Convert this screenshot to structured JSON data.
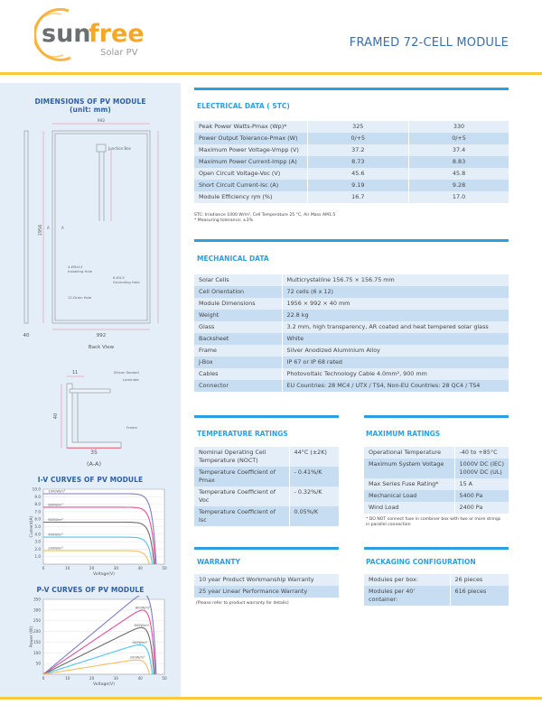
{
  "header": {
    "brand": "sunfree",
    "brand_sub": "Solar PV",
    "title": "FRAMED 72-CELL MODULE"
  },
  "colors": {
    "accent_blue": "#2b9fe0",
    "yellow": "#f7cc3c",
    "panel_bg": "#e3eef9",
    "row_dark": "#c6ddf2",
    "logo_orange": "#f4a825",
    "logo_gray": "#6d6e70"
  },
  "dimensions": {
    "title": "DIMENSIONS OF PV MODULE",
    "unit": "(unit: mm)",
    "width_top": "992",
    "width_bottom": "992",
    "height": "1956",
    "thickness": "40",
    "junction_box": "Junction Box",
    "installing_hole_1": "4-Ø9x14",
    "installing_hole_2": "Installing Hole",
    "grounding_hole_1": "6-Ø4.5",
    "grounding_hole_2": "Grounding Hole",
    "drain_hole": "12-Drain Hole",
    "section_mark": "A",
    "back_view": "Back View",
    "section": {
      "dim_top": "11",
      "sealant": "Silicon Sealant",
      "laminate": "Laminate",
      "dim_height": "40",
      "frame": "Frame",
      "dim_width": "35",
      "label": "(A-A)"
    }
  },
  "chart_data": [
    {
      "type": "line",
      "title": "I-V CURVES OF PV MODULE",
      "xlabel": "Voltage(V)",
      "ylabel": "Current(A)",
      "xlim": [
        0,
        50
      ],
      "ylim": [
        0,
        10
      ],
      "xticks": [
        "0",
        "10",
        "20",
        "30",
        "40",
        "50"
      ],
      "yticks": [
        "1.0",
        "2.0",
        "3.0",
        "4.0",
        "5.0",
        "6.0",
        "7.0",
        "8.0",
        "9.0",
        "10.0"
      ],
      "series": [
        {
          "name": "1000W/m²",
          "isc": 9.4,
          "voc": 46.6,
          "color": "#7b7fc4"
        },
        {
          "name": "800W/m²",
          "isc": 7.6,
          "voc": 46.2,
          "color": "#e64d9e"
        },
        {
          "name": "600W/m²",
          "isc": 5.6,
          "voc": 45.7,
          "color": "#6b6b6b"
        },
        {
          "name": "400W/m²",
          "isc": 3.6,
          "voc": 45.0,
          "color": "#4cc4ef"
        },
        {
          "name": "200W/m²",
          "isc": 1.8,
          "voc": 43.8,
          "color": "#f2bd63"
        }
      ]
    },
    {
      "type": "line",
      "title": "P-V CURVES OF PV MODULE",
      "xlabel": "Voltage(V)",
      "ylabel": "Power (W)",
      "xlim": [
        0,
        50
      ],
      "ylim": [
        0,
        350
      ],
      "xticks": [
        "0",
        "10",
        "20",
        "30",
        "40",
        "50"
      ],
      "yticks": [
        "50",
        "100",
        "150",
        "200",
        "250",
        "300",
        "350"
      ],
      "series": [
        {
          "name": "1000W/m²",
          "isc": 9.4,
          "voc": 46.6,
          "color": "#7b7fc4"
        },
        {
          "name": "800W/m²",
          "isc": 7.6,
          "voc": 46.2,
          "color": "#e64d9e"
        },
        {
          "name": "600W/m²",
          "isc": 5.6,
          "voc": 45.7,
          "color": "#6b6b6b"
        },
        {
          "name": "400W/m²",
          "isc": 3.6,
          "voc": 45.0,
          "color": "#4cc4ef"
        },
        {
          "name": "200W/m²",
          "isc": 1.8,
          "voc": 43.8,
          "color": "#f2bd63"
        }
      ]
    }
  ],
  "electrical": {
    "title": "ELECTRICAL DATA ( STC)",
    "rows": [
      [
        "Peak Power Watts-Pmax (Wp)*",
        "325",
        "330"
      ],
      [
        "Power Output Tolerance-Pmax (W)",
        "0/+5",
        "0/+5"
      ],
      [
        "Maximum Power Voltage-Vmpp (V)",
        "37.2",
        "37.4"
      ],
      [
        "Maximum Power Current-Impp (A)",
        "8.73",
        "8.83"
      ],
      [
        "Open Circuit Voltage-Voc (V)",
        "45.6",
        "45.8"
      ],
      [
        "Short Circuit Current-Isc (A)",
        "9.19",
        "9.28"
      ],
      [
        "Module Efficiency ηm (%)",
        "16.7",
        "17.0"
      ]
    ],
    "note1": "STC: Irradiance 1000 W/m², Cell Temperature 25 °C, Air Mass AM1.5",
    "note2": "* Measuring tolerance: ±3%"
  },
  "mechanical": {
    "title": "MECHANICAL DATA",
    "rows": [
      [
        "Solar Cells",
        "Multicrystalline 156.75 × 156.75 mm"
      ],
      [
        "Cell Orientation",
        "72 cells (6 x 12)"
      ],
      [
        "Module Dimensions",
        "1956 × 992 × 40 mm"
      ],
      [
        "Weight",
        "22.8 kg"
      ],
      [
        "Glass",
        "3.2 mm, high transparency, AR coated and heat tempered solar glass"
      ],
      [
        "Backsheet",
        "White"
      ],
      [
        "Frame",
        "Silver Anodized Aluminium Alloy"
      ],
      [
        "J-Box",
        "IP 67 or IP 68 rated"
      ],
      [
        "Cables",
        "Photovoltaic Technology Cable 4.0mm², 900 mm"
      ],
      [
        "Connector",
        "EU Countries: 28 MC4 / UTX / TS4, Non-EU Countries: 28 QC4 / TS4"
      ]
    ]
  },
  "temperature": {
    "title": "TEMPERATURE RATINGS",
    "rows": [
      [
        "Nominal Operating Cell Temperature (NOCT)",
        "44°C (±2K)"
      ],
      [
        "Temperature Coefficient of Pmax",
        "- 0.41%/K"
      ],
      [
        "Temperature Coefficient of Voc",
        "- 0.32%/K"
      ],
      [
        "Temperature Coefficient of Isc",
        "0.05%/K"
      ]
    ]
  },
  "maximum": {
    "title": "MAXIMUM RATINGS",
    "rows": [
      [
        "Operational Temperature",
        "-40 to +85°C"
      ],
      [
        "Maximum System Voltage",
        "1000V DC (IEC) 1000V DC (UL)"
      ],
      [
        "Max Series Fuse Rating*",
        "15 A"
      ],
      [
        "Mechanical Load",
        "5400 Pa"
      ],
      [
        "Wind Load",
        "2400 Pa"
      ]
    ],
    "note": "* DO NOT connect fuse in combiner box with two or more strings in parallel connection"
  },
  "warranty": {
    "title": "WARRANTY",
    "rows": [
      [
        "10 year Product Workmanship Warranty"
      ],
      [
        "25 year Linear Performance Warranty"
      ]
    ],
    "note": "(Please refer to product warranty for details)"
  },
  "packaging": {
    "title": "PACKAGING CONFIGURATION",
    "rows": [
      [
        "Modules per box:",
        "26 pieces"
      ],
      [
        "Modules per 40' container:",
        "616 pieces"
      ]
    ]
  }
}
